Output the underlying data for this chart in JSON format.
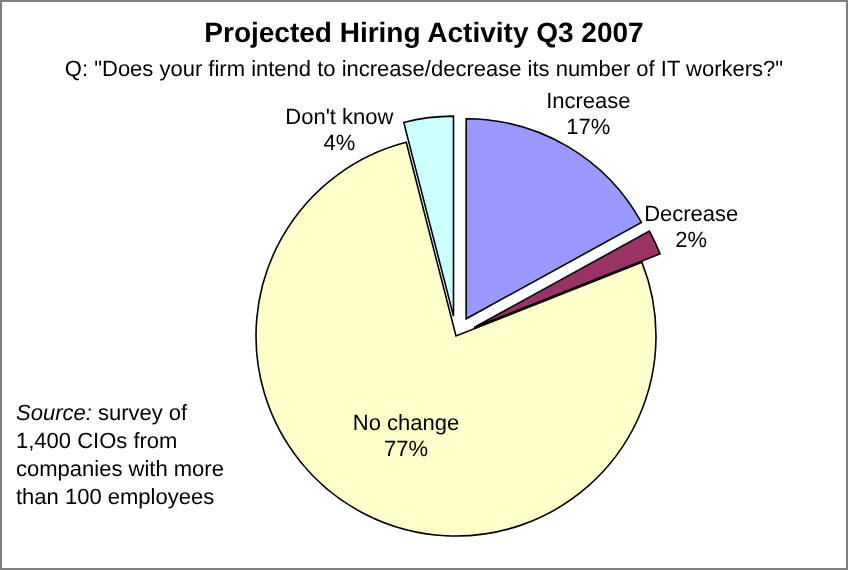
{
  "chart_data": {
    "type": "pie",
    "title": "Projected Hiring Activity Q3 2007",
    "subtitle": "Q: \"Does your firm intend to increase/decrease its number of IT workers?\"",
    "categories": [
      "Increase",
      "Decrease",
      "No change",
      "Don't know"
    ],
    "values": [
      17,
      2,
      77,
      4
    ],
    "colors": [
      "#9999ff",
      "#993366",
      "#ffffcc",
      "#ccffff"
    ],
    "value_labels": [
      "17%",
      "2%",
      "77%",
      "4%"
    ],
    "annotations": [
      "Source: survey of 1,400 CIOs from companies with more than 100 employees"
    ]
  }
}
